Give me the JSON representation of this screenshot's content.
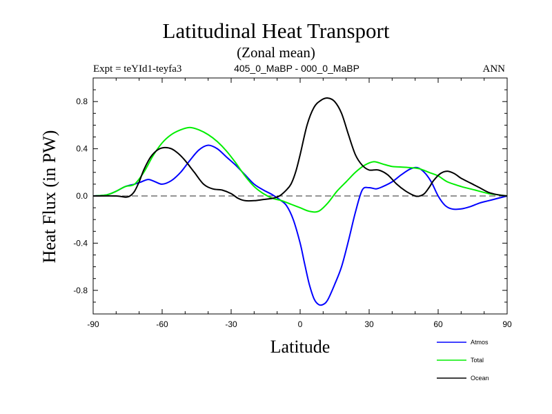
{
  "chart_data": {
    "type": "line",
    "title": "Latitudinal Heat Transport",
    "subtitle": "(Zonal mean)",
    "left_string": "Expt = teYId1-teyfa3",
    "center_string": "405_0_MaBP - 000_0_MaBP",
    "right_string": "ANN",
    "xlabel": "Latitude",
    "ylabel": "Heat Flux (in PW)",
    "xlim": [
      -90,
      90
    ],
    "ylim": [
      -1.0,
      1.0
    ],
    "xticks": [
      -90,
      -60,
      -30,
      0,
      30,
      60,
      90
    ],
    "xtick_labels": [
      "-90",
      "-60",
      "-30",
      "0",
      "30",
      "60",
      "90"
    ],
    "yticks": [
      -0.8,
      -0.4,
      0.0,
      0.4,
      0.8
    ],
    "ytick_labels": [
      "-0.8",
      "-0.4",
      "0.0",
      "0.4",
      "0.8"
    ],
    "zero_line": "dashed",
    "legend_position": "bottom-right",
    "series": [
      {
        "name": "Atmos",
        "color": "#0000ff",
        "x": [
          -90,
          -84,
          -80,
          -76,
          -72,
          -69,
          -66,
          -63,
          -60,
          -56,
          -52,
          -48,
          -44,
          -40,
          -36,
          -32,
          -28,
          -24,
          -20,
          -16,
          -12,
          -9,
          -6,
          -3,
          0,
          2,
          4,
          6,
          8,
          10,
          12,
          15,
          18,
          21,
          24,
          27,
          30,
          33,
          36,
          40,
          44,
          48,
          51,
          54,
          57,
          60,
          63,
          66,
          70,
          74,
          78,
          82,
          86,
          90
        ],
        "y": [
          0.0,
          0.01,
          0.04,
          0.08,
          0.1,
          0.12,
          0.14,
          0.12,
          0.1,
          0.13,
          0.2,
          0.3,
          0.39,
          0.43,
          0.4,
          0.33,
          0.26,
          0.18,
          0.1,
          0.05,
          0.01,
          -0.03,
          -0.08,
          -0.2,
          -0.4,
          -0.58,
          -0.75,
          -0.87,
          -0.92,
          -0.92,
          -0.88,
          -0.75,
          -0.6,
          -0.38,
          -0.14,
          0.05,
          0.07,
          0.06,
          0.08,
          0.12,
          0.18,
          0.23,
          0.24,
          0.2,
          0.12,
          0.0,
          -0.08,
          -0.11,
          -0.11,
          -0.09,
          -0.06,
          -0.04,
          -0.02,
          0.0
        ]
      },
      {
        "name": "Total",
        "color": "#00ee00",
        "x": [
          -90,
          -84,
          -80,
          -76,
          -72,
          -68,
          -64,
          -60,
          -56,
          -52,
          -48,
          -44,
          -40,
          -36,
          -32,
          -28,
          -24,
          -20,
          -16,
          -12,
          -8,
          -4,
          0,
          4,
          8,
          12,
          16,
          20,
          24,
          28,
          32,
          36,
          40,
          44,
          48,
          52,
          56,
          60,
          64,
          70,
          76,
          82,
          86,
          90
        ],
        "y": [
          0.0,
          0.01,
          0.04,
          0.08,
          0.1,
          0.2,
          0.34,
          0.45,
          0.52,
          0.56,
          0.58,
          0.56,
          0.52,
          0.46,
          0.38,
          0.28,
          0.17,
          0.08,
          0.02,
          -0.02,
          -0.04,
          -0.07,
          -0.1,
          -0.13,
          -0.13,
          -0.06,
          0.04,
          0.12,
          0.2,
          0.26,
          0.29,
          0.27,
          0.25,
          0.245,
          0.24,
          0.23,
          0.2,
          0.17,
          0.12,
          0.08,
          0.05,
          0.02,
          0.01,
          0.0
        ]
      },
      {
        "name": "Ocean",
        "color": "#000000",
        "x": [
          -90,
          -80,
          -76,
          -74,
          -72,
          -70,
          -68,
          -65,
          -62,
          -59,
          -56,
          -53,
          -50,
          -46,
          -42,
          -38,
          -34,
          -30,
          -27,
          -24,
          -20,
          -16,
          -12,
          -9,
          -6,
          -4,
          -2,
          0,
          3,
          6,
          9,
          12,
          15,
          18,
          21,
          24,
          27,
          30,
          34,
          38,
          42,
          46,
          50,
          52,
          54,
          56,
          58,
          61,
          64,
          67,
          70,
          74,
          78,
          82,
          86,
          90
        ],
        "y": [
          0.0,
          0.0,
          -0.01,
          0.0,
          0.04,
          0.12,
          0.22,
          0.33,
          0.39,
          0.41,
          0.4,
          0.36,
          0.3,
          0.2,
          0.1,
          0.06,
          0.05,
          0.02,
          -0.02,
          -0.04,
          -0.04,
          -0.03,
          -0.02,
          0.0,
          0.05,
          0.1,
          0.2,
          0.35,
          0.6,
          0.75,
          0.81,
          0.83,
          0.8,
          0.7,
          0.52,
          0.35,
          0.26,
          0.22,
          0.22,
          0.18,
          0.1,
          0.04,
          0.0,
          0.0,
          0.02,
          0.07,
          0.13,
          0.19,
          0.21,
          0.19,
          0.15,
          0.11,
          0.07,
          0.03,
          0.01,
          0.0
        ]
      }
    ]
  }
}
